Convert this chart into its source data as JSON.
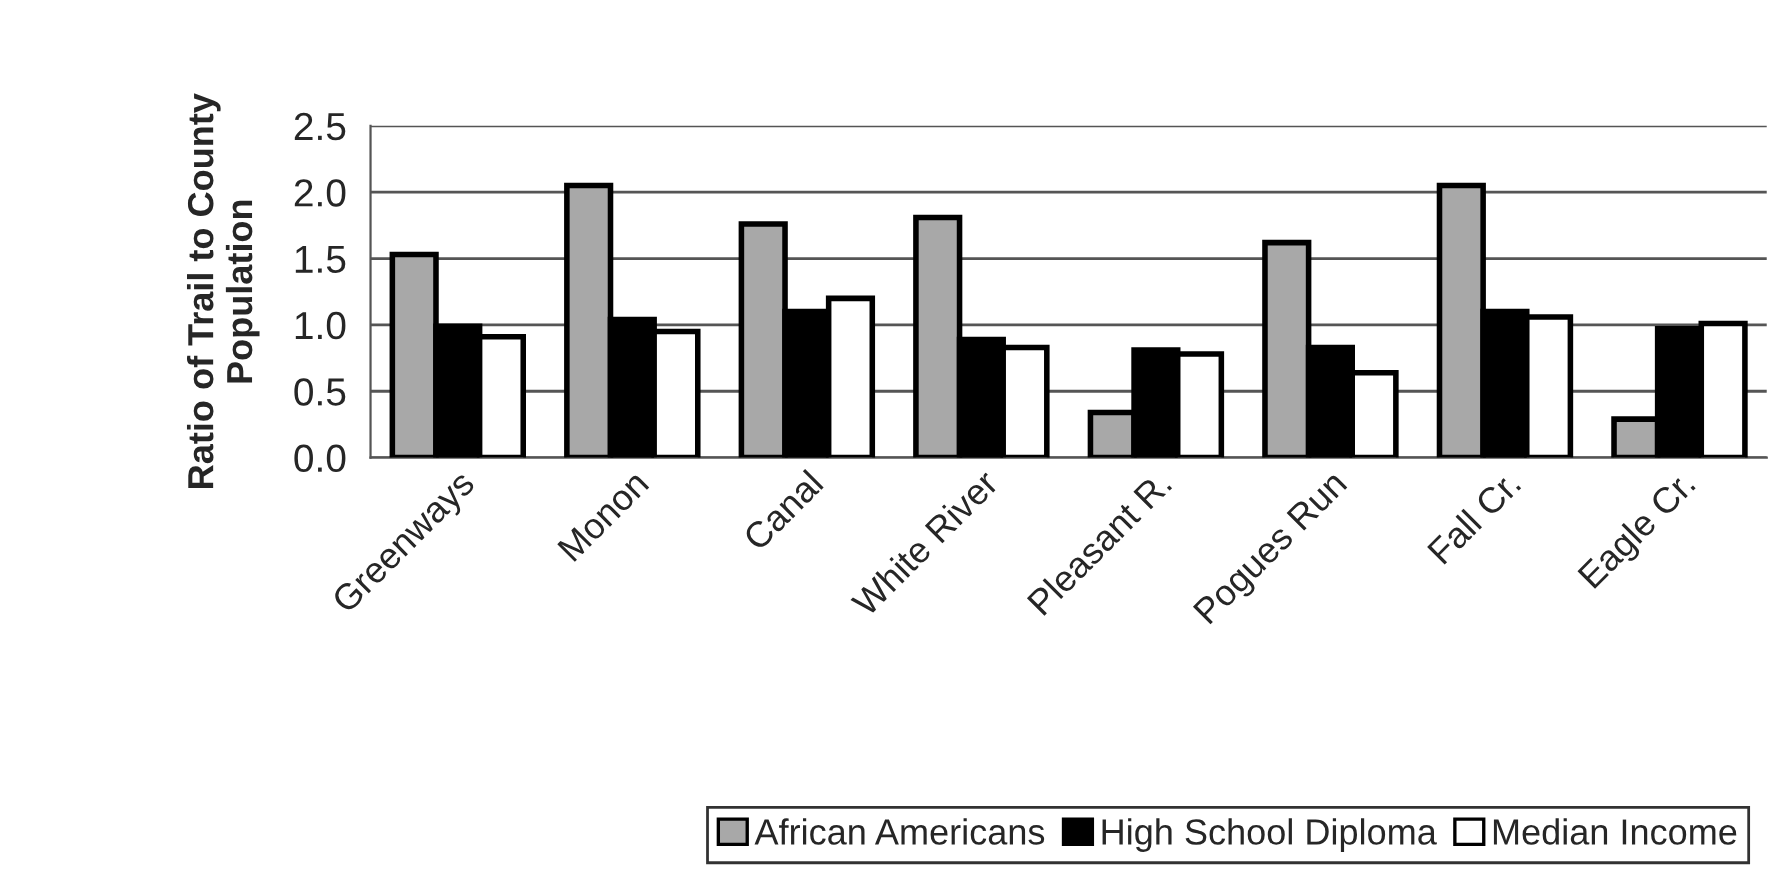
{
  "chart_data": {
    "type": "bar",
    "ylabel": "Ratio of Trail to County\nPopulation",
    "categories": [
      "Greenways",
      "Monon",
      "Canal",
      "White River",
      "Pleasant R.",
      "Pogues Run",
      "Fall Cr.",
      "Eagle Cr."
    ],
    "series": [
      {
        "name": "African Americans",
        "color": "#a8a8a8",
        "values": [
          1.53,
          2.05,
          1.76,
          1.81,
          0.34,
          1.62,
          2.05,
          0.29
        ]
      },
      {
        "name": "High School Diploma",
        "color": "#000000",
        "values": [
          0.99,
          1.04,
          1.1,
          0.89,
          0.81,
          0.83,
          1.1,
          0.97
        ]
      },
      {
        "name": "Median Income",
        "color": "#ffffff",
        "values": [
          0.91,
          0.95,
          1.2,
          0.83,
          0.78,
          0.64,
          1.06,
          1.01
        ]
      }
    ],
    "ylim": [
      0,
      2.5
    ],
    "yticks": [
      {
        "value": 0,
        "label": "0.0"
      },
      {
        "value": 0.5,
        "label": "0.5"
      },
      {
        "value": 1,
        "label": "1.0"
      },
      {
        "value": 1.5,
        "label": "1.5"
      },
      {
        "value": 2,
        "label": "2.0"
      },
      {
        "value": 2.5,
        "label": "2.5"
      }
    ],
    "grid": "y",
    "legend": "bottom"
  }
}
